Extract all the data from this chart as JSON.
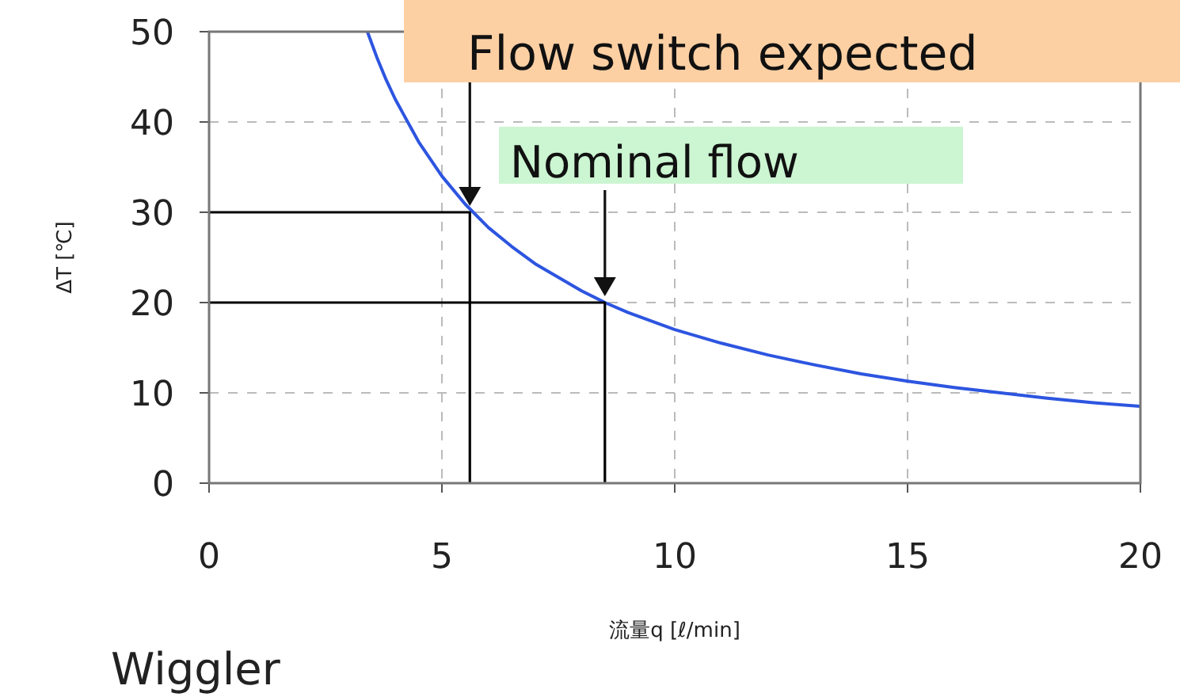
{
  "chart_data": {
    "type": "line",
    "title": "Wiggler",
    "xlabel": "流量q [ℓ/min]",
    "ylabel": "ΔT [℃]",
    "xlim": [
      0,
      20
    ],
    "xticks": [
      0,
      5,
      10,
      15,
      20
    ],
    "ylim": [
      0,
      50
    ],
    "yticks": [
      0,
      10,
      20,
      30,
      40,
      50
    ],
    "grid": true,
    "marker": "none",
    "line_style": "solid",
    "series": [
      {
        "color": "#2d55e0",
        "x": [
          3.4,
          3.6,
          3.8,
          4,
          4.5,
          5,
          5.5,
          6,
          6.5,
          7,
          8,
          8.5,
          9,
          10,
          11,
          12,
          13,
          14,
          15,
          16,
          17,
          18,
          19,
          20
        ],
        "values": [
          50,
          47.2,
          44.7,
          42.5,
          37.8,
          34,
          30.9,
          28.3,
          26.2,
          24.3,
          21.3,
          20,
          18.9,
          17,
          15.5,
          14.2,
          13.1,
          12.1,
          11.3,
          10.6,
          10,
          9.4,
          8.9,
          8.5
        ]
      },
      {
        "color": "#000000",
        "x": [
          0,
          5.6,
          5.6
        ],
        "values": [
          30,
          30,
          0
        ]
      },
      {
        "color": "#000000",
        "x": [
          0,
          8.5,
          8.5
        ],
        "values": [
          20,
          20,
          0
        ]
      }
    ],
    "annotations": [
      {
        "text": "Flow switch expected",
        "x": 5.6,
        "y": 30
      },
      {
        "text": "Nominal flow",
        "x": 8.5,
        "y": 20
      }
    ]
  }
}
